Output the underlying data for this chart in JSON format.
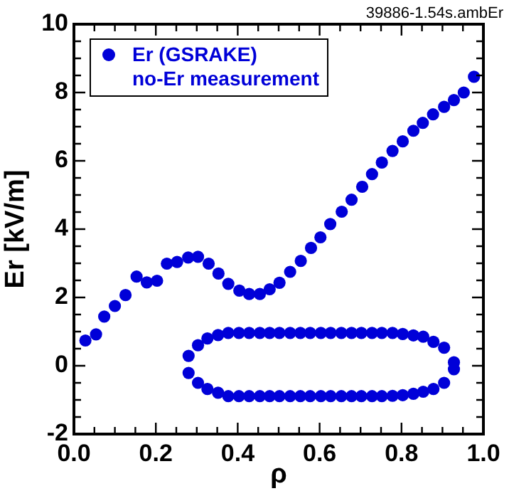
{
  "chart_data": {
    "type": "scatter",
    "xlabel": "ρ",
    "ylabel": "Er [kV/m]",
    "annotations": [
      "39886-1.54s.ambEr"
    ],
    "xlim": [
      0,
      1
    ],
    "ylim": [
      -2,
      10
    ],
    "xticks": [
      {
        "value": 0,
        "label": "0.0"
      },
      {
        "value": 0.05,
        "label": null
      },
      {
        "value": 0.1,
        "label": null
      },
      {
        "value": 0.15,
        "label": null
      },
      {
        "value": 0.2,
        "label": "0.2"
      },
      {
        "value": 0.25,
        "label": null
      },
      {
        "value": 0.3,
        "label": null
      },
      {
        "value": 0.35,
        "label": null
      },
      {
        "value": 0.4,
        "label": "0.4"
      },
      {
        "value": 0.45,
        "label": null
      },
      {
        "value": 0.5,
        "label": null
      },
      {
        "value": 0.55,
        "label": null
      },
      {
        "value": 0.6,
        "label": "0.6"
      },
      {
        "value": 0.65,
        "label": null
      },
      {
        "value": 0.7,
        "label": null
      },
      {
        "value": 0.75,
        "label": null
      },
      {
        "value": 0.8,
        "label": "0.8"
      },
      {
        "value": 0.85,
        "label": null
      },
      {
        "value": 0.9,
        "label": null
      },
      {
        "value": 0.95,
        "label": null
      },
      {
        "value": 1,
        "label": "1.0"
      }
    ],
    "yticks": [
      -2,
      {
        "value": -1.5,
        "label": null
      },
      {
        "value": -1,
        "label": null
      },
      {
        "value": -0.5,
        "label": null
      },
      0,
      {
        "value": 0.5,
        "label": null
      },
      {
        "value": 1,
        "label": null
      },
      {
        "value": 1.5,
        "label": null
      },
      2,
      {
        "value": 2.5,
        "label": null
      },
      {
        "value": 3,
        "label": null
      },
      {
        "value": 3.5,
        "label": null
      },
      4,
      {
        "value": 4.5,
        "label": null
      },
      {
        "value": 5,
        "label": null
      },
      {
        "value": 5.5,
        "label": null
      },
      6,
      {
        "value": 6.5,
        "label": null
      },
      {
        "value": 7,
        "label": null
      },
      {
        "value": 7.5,
        "label": null
      },
      8,
      {
        "value": 8.5,
        "label": null
      },
      {
        "value": 9,
        "label": null
      },
      {
        "value": 9.5,
        "label": null
      },
      10
    ],
    "grid": false,
    "legend": "top left",
    "marker": "circle",
    "series": [
      {
        "name": "Er (GSRAKE)\nno-Er measurement",
        "color": "#0000d8",
        "x": [
          0.028,
          0.054,
          0.074,
          0.1,
          0.126,
          0.153,
          0.178,
          0.203,
          0.227,
          0.252,
          0.279,
          0.303,
          0.329,
          0.353,
          0.377,
          0.404,
          0.428,
          0.454,
          0.478,
          0.502,
          0.528,
          0.554,
          0.579,
          0.602,
          0.626,
          0.654,
          0.678,
          0.704,
          0.728,
          0.752,
          0.778,
          0.803,
          0.829,
          0.852,
          0.877,
          0.904,
          0.928,
          0.952,
          0.977,
          0.28,
          0.303,
          0.326,
          0.352,
          0.377,
          0.403,
          0.428,
          0.454,
          0.478,
          0.502,
          0.528,
          0.553,
          0.577,
          0.603,
          0.627,
          0.653,
          0.678,
          0.702,
          0.728,
          0.752,
          0.778,
          0.803,
          0.829,
          0.853,
          0.878,
          0.904,
          0.928,
          0.928,
          0.904,
          0.878,
          0.853,
          0.829,
          0.803,
          0.778,
          0.752,
          0.728,
          0.702,
          0.678,
          0.653,
          0.627,
          0.603,
          0.577,
          0.553,
          0.528,
          0.502,
          0.478,
          0.454,
          0.428,
          0.403,
          0.377,
          0.352,
          0.326,
          0.303,
          0.28
        ],
        "values": [
          0.74,
          0.92,
          1.44,
          1.75,
          2.07,
          2.61,
          2.44,
          2.49,
          2.99,
          3.04,
          3.17,
          3.19,
          2.99,
          2.7,
          2.4,
          2.2,
          2.1,
          2.1,
          2.24,
          2.43,
          2.75,
          3.07,
          3.45,
          3.76,
          4.15,
          4.51,
          4.86,
          5.24,
          5.61,
          5.95,
          6.29,
          6.57,
          6.88,
          7.11,
          7.36,
          7.58,
          7.78,
          8.0,
          8.46,
          0.29,
          0.6,
          0.8,
          0.9,
          0.96,
          0.96,
          0.96,
          0.96,
          0.96,
          0.96,
          0.96,
          0.96,
          0.96,
          0.96,
          0.96,
          0.96,
          0.96,
          0.96,
          0.96,
          0.96,
          0.96,
          0.93,
          0.89,
          0.85,
          0.7,
          0.53,
          0.1,
          -0.1,
          -0.5,
          -0.68,
          -0.76,
          -0.82,
          -0.86,
          -0.88,
          -0.89,
          -0.89,
          -0.89,
          -0.89,
          -0.89,
          -0.89,
          -0.89,
          -0.89,
          -0.89,
          -0.89,
          -0.89,
          -0.89,
          -0.89,
          -0.89,
          -0.89,
          -0.89,
          -0.79,
          -0.68,
          -0.5,
          -0.21
        ]
      }
    ]
  }
}
